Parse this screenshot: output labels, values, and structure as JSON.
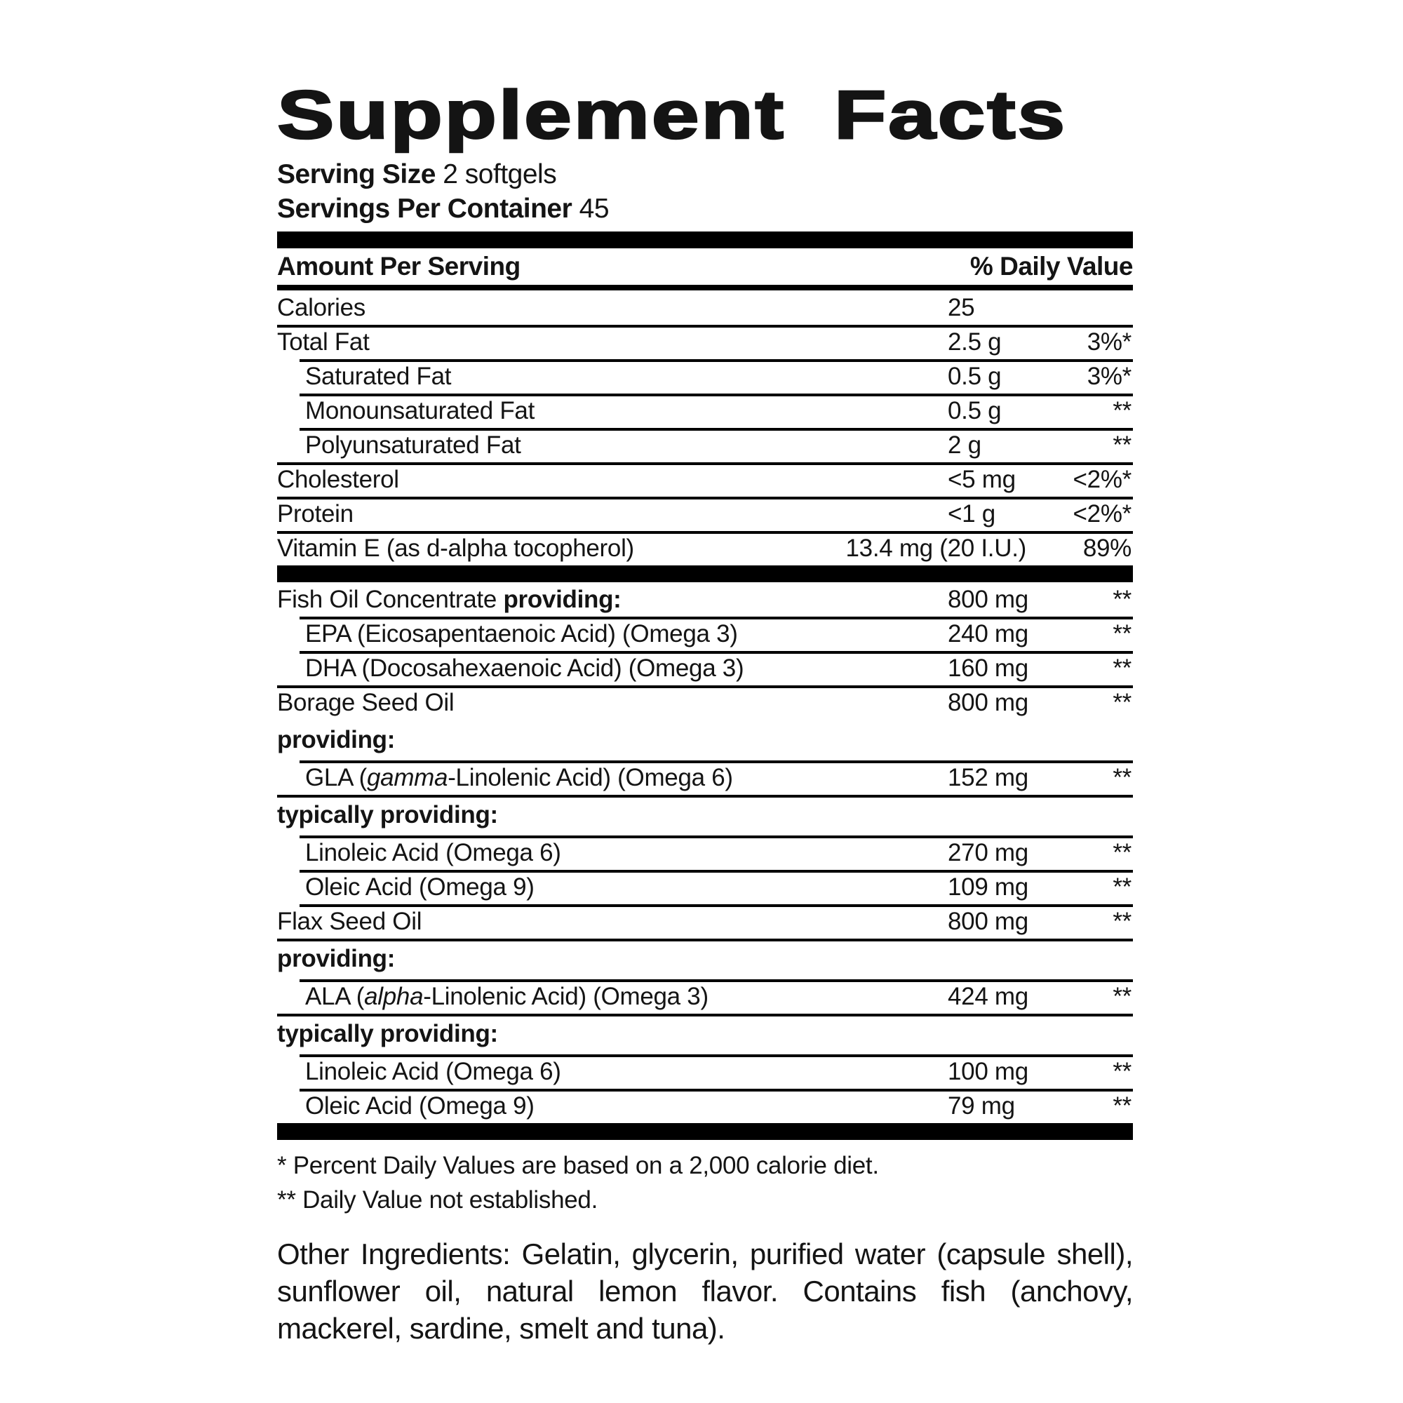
{
  "colors": {
    "text": "#141414",
    "rule": "#000000",
    "background": "#ffffff"
  },
  "title": "Supplement Facts",
  "serving": {
    "size_label": "Serving Size",
    "size_value": "2 softgels",
    "per_container_label": "Servings Per Container",
    "per_container_value": "45"
  },
  "header": {
    "left": "Amount Per Serving",
    "right": "% Daily Value"
  },
  "rows": [
    {
      "name": "Calories",
      "amount": "25"
    },
    {
      "name": "Total Fat",
      "amount": "2.5 g",
      "dv": "3%*"
    },
    {
      "name": "Saturated Fat",
      "amount": "0.5 g",
      "dv": "3%*"
    },
    {
      "name": "Monounsaturated Fat",
      "amount": "0.5 g",
      "dv": "**"
    },
    {
      "name": "Polyunsaturated Fat",
      "amount": "2 g",
      "dv": "**"
    },
    {
      "name": "Cholesterol",
      "amount": "<5 mg",
      "dv": "<2%*"
    },
    {
      "name": "Protein",
      "amount": "<1 g",
      "dv": "<2%*"
    },
    {
      "name": "Vitamin E (as d-alpha tocopherol)",
      "amount": "13.4 mg (20 I.U.)",
      "dv": "89%"
    },
    {
      "name": "Fish Oil Concentrate ",
      "name_bold": "providing:",
      "amount": "800 mg",
      "dv": "**"
    },
    {
      "name": "EPA (Eicosapentaenoic Acid) (Omega 3)",
      "amount": "240 mg",
      "dv": "**"
    },
    {
      "name": "DHA (Docosahexaenoic Acid) (Omega 3)",
      "amount": "160 mg",
      "dv": "**"
    },
    {
      "name": "Borage Seed Oil",
      "amount": "800 mg",
      "dv": "**"
    },
    {
      "name": "providing:"
    },
    {
      "name_pre": "GLA (",
      "name_italic": "gamma",
      "name_post": "-Linolenic Acid) (Omega 6)",
      "amount": "152 mg",
      "dv": "**"
    },
    {
      "name": "typically providing:"
    },
    {
      "name": "Linoleic Acid (Omega 6)",
      "amount": "270 mg",
      "dv": "**"
    },
    {
      "name": "Oleic Acid (Omega 9)",
      "amount": "109 mg",
      "dv": "**"
    },
    {
      "name": "Flax Seed Oil",
      "amount": "800 mg",
      "dv": "**"
    },
    {
      "name": "providing:"
    },
    {
      "name_pre": "ALA (",
      "name_italic": "alpha",
      "name_post": "-Linolenic Acid) (Omega 3)",
      "amount": "424 mg",
      "dv": "**"
    },
    {
      "name": "typically providing:"
    },
    {
      "name": "Linoleic Acid (Omega 6)",
      "amount": "100 mg",
      "dv": "**"
    },
    {
      "name": "Oleic Acid (Omega 9)",
      "amount": "79 mg",
      "dv": "**"
    }
  ],
  "footnotes": {
    "daily_value": "* Percent Daily Values are based on a 2,000 calorie diet.",
    "not_established": "** Daily Value not established."
  },
  "other_ingredients": "Other Ingredients: Gelatin, glycerin, purified water (capsule shell), sunflower oil, natural lemon flavor. Contains fish (anchovy, mackerel, sardine, smelt and tuna)."
}
